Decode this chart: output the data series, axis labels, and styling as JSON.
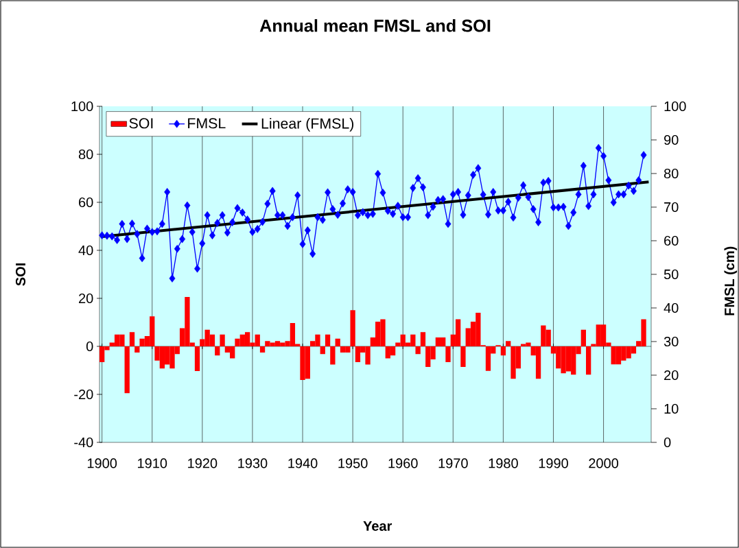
{
  "chart_data": {
    "type": "bar",
    "title": "Annual mean FMSL and SOI",
    "xlabel": "Year",
    "ylabel": "SOI",
    "y2label": "FMSL (cm)",
    "x": [
      1900,
      1901,
      1902,
      1903,
      1904,
      1905,
      1906,
      1907,
      1908,
      1909,
      1910,
      1911,
      1912,
      1913,
      1914,
      1915,
      1916,
      1917,
      1918,
      1919,
      1920,
      1921,
      1922,
      1923,
      1924,
      1925,
      1926,
      1927,
      1928,
      1929,
      1930,
      1931,
      1932,
      1933,
      1934,
      1935,
      1936,
      1937,
      1938,
      1939,
      1940,
      1941,
      1942,
      1943,
      1944,
      1945,
      1946,
      1947,
      1948,
      1949,
      1950,
      1951,
      1952,
      1953,
      1954,
      1955,
      1956,
      1957,
      1958,
      1959,
      1960,
      1961,
      1962,
      1963,
      1964,
      1965,
      1966,
      1967,
      1968,
      1969,
      1970,
      1971,
      1972,
      1973,
      1974,
      1975,
      1976,
      1977,
      1978,
      1979,
      1980,
      1981,
      1982,
      1983,
      1984,
      1985,
      1986,
      1987,
      1988,
      1989,
      1990,
      1991,
      1992,
      1993,
      1994,
      1995,
      1996,
      1997,
      1998,
      1999,
      2000,
      2001,
      2002,
      2003,
      2004,
      2005,
      2006,
      2007,
      2008
    ],
    "xlim": [
      1899.5,
      2009.5
    ],
    "xticks": [
      1900,
      1910,
      1920,
      1930,
      1940,
      1950,
      1960,
      1970,
      1980,
      1990,
      2000
    ],
    "ylim": [
      -40,
      100
    ],
    "yticks": [
      -40,
      -20,
      0,
      20,
      40,
      60,
      80,
      100
    ],
    "y2lim": [
      0,
      100
    ],
    "y2ticks": [
      0,
      10,
      20,
      30,
      40,
      50,
      60,
      70,
      80,
      90,
      100
    ],
    "grid": "x",
    "legend": "top left",
    "series": [
      {
        "name": "SOI",
        "color": "#ff0000",
        "values": [
          -6.6,
          -1.6,
          1.6,
          4.9,
          4.9,
          -19.5,
          5.9,
          -2.6,
          3.2,
          4.3,
          12.5,
          -5.9,
          -9.2,
          -7.6,
          -9.2,
          -3.2,
          7.6,
          20.6,
          1.6,
          -10.3,
          3.0,
          6.9,
          4.9,
          -3.8,
          4.9,
          -2.6,
          -5.0,
          3.2,
          4.9,
          5.9,
          1.6,
          4.9,
          -2.6,
          2.2,
          1.6,
          2.2,
          1.6,
          2.2,
          9.7,
          1.0,
          -14.0,
          -13.5,
          2.2,
          4.9,
          -3.2,
          4.9,
          -7.6,
          3.2,
          -2.6,
          -2.6,
          15.1,
          -6.6,
          -2.6,
          -7.6,
          3.7,
          10.3,
          11.3,
          -5.0,
          -3.8,
          1.6,
          4.9,
          1.6,
          4.9,
          -3.2,
          5.9,
          -8.6,
          -5.4,
          3.7,
          3.7,
          -6.6,
          4.9,
          11.3,
          -8.6,
          7.6,
          10.3,
          14.0,
          0.5,
          -10.2,
          -3.0,
          0.5,
          -3.8,
          2.2,
          -13.5,
          -9.2,
          1.0,
          1.6,
          -3.8,
          -13.5,
          8.7,
          6.9,
          -3.0,
          -9.2,
          -11.2,
          -10.4,
          -11.8,
          -3.2,
          6.9,
          -11.8,
          1.0,
          9.1,
          9.1,
          1.6,
          -7.5,
          -7.5,
          -5.9,
          -5.0,
          -3.0,
          2.2,
          11.3
        ]
      },
      {
        "name": "FMSL",
        "type": "line",
        "axis": "y2",
        "color": "#0000ff",
        "marker": "diamond",
        "values": [
          61.6,
          61.5,
          61.3,
          60.2,
          65.0,
          60.5,
          65.1,
          62.0,
          54.8,
          63.6,
          62.6,
          62.8,
          65.0,
          74.5,
          48.8,
          57.6,
          60.5,
          70.5,
          62.6,
          51.7,
          59.2,
          67.6,
          61.6,
          65.3,
          67.6,
          62.4,
          65.5,
          69.7,
          68.4,
          66.3,
          62.6,
          63.5,
          65.6,
          71.0,
          74.8,
          67.6,
          67.6,
          64.4,
          67.0,
          73.5,
          59.0,
          63.1,
          56.1,
          67.0,
          66.2,
          74.4,
          69.4,
          67.7,
          71.1,
          75.3,
          74.5,
          67.6,
          68.5,
          67.6,
          68.0,
          79.9,
          74.3,
          68.9,
          68.0,
          70.4,
          67.0,
          67.0,
          75.7,
          78.6,
          75.9,
          67.6,
          70.1,
          72.1,
          72.4,
          65.0,
          73.8,
          74.5,
          67.7,
          73.5,
          79.6,
          81.6,
          73.7,
          67.8,
          74.5,
          69.0,
          69.0,
          71.6,
          66.9,
          72.8,
          76.5,
          73.0,
          69.4,
          65.5,
          77.3,
          77.8,
          69.9,
          69.9,
          70.1,
          64.4,
          68.4,
          73.8,
          82.3,
          70.3,
          73.8,
          87.6,
          85.2,
          78.0,
          71.4,
          73.8,
          73.8,
          76.4,
          74.8,
          78.0,
          85.5
        ]
      },
      {
        "name": "Linear (FMSL)",
        "type": "line",
        "axis": "y2",
        "color": "#000000",
        "marker": "none",
        "x": [
          1900,
          2009
        ],
        "values": [
          61.2,
          77.5
        ]
      }
    ]
  }
}
